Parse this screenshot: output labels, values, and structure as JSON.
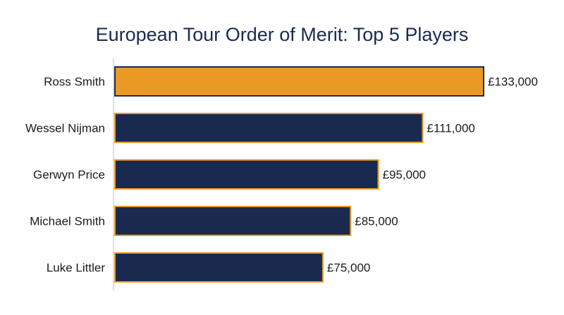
{
  "chart_data": {
    "type": "bar",
    "orientation": "horizontal",
    "title": "European Tour Order of Merit: Top 5 Players",
    "xlabel": "",
    "ylabel": "",
    "categories": [
      "Ross Smith",
      "Wessel Nijman",
      "Gerwyn Price",
      "Michael Smith",
      "Luke Littler"
    ],
    "values": [
      133000,
      111000,
      95000,
      85000,
      75000
    ],
    "value_labels": [
      "£133,000",
      "£111,000",
      "£95,000",
      "£85,000",
      "£75,000"
    ],
    "xlim": [
      0,
      133000
    ],
    "grid": false,
    "legend": "none",
    "highlight_index": 0,
    "colors": {
      "highlight_fill": "#e89a24",
      "highlight_stroke": "#1a2a4f",
      "bar_fill": "#1a2a4f",
      "bar_stroke": "#e89a24",
      "axis": "#d4d4d4",
      "title": "#1a2a4f",
      "text": "#1b1b1b"
    }
  }
}
